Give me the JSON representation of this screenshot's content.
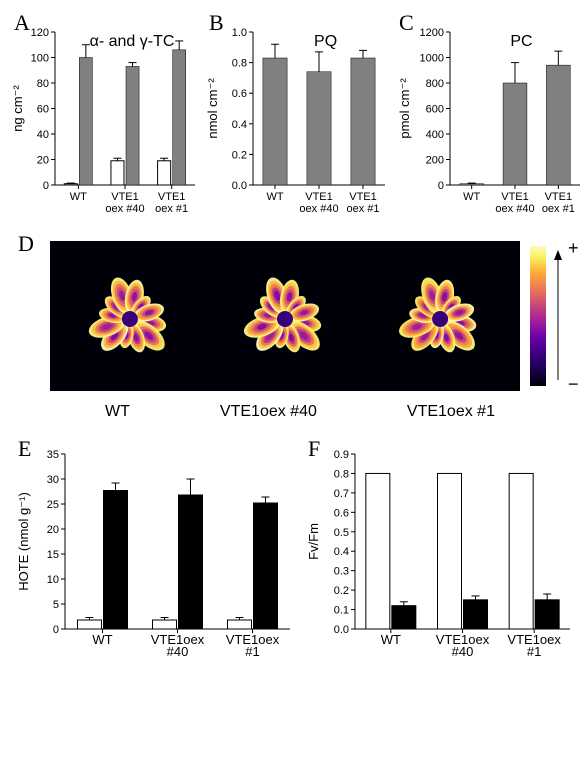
{
  "panelA": {
    "label": "A",
    "title": "α- and γ-TC",
    "ylabel": "ng cm⁻²",
    "ylim": [
      0,
      120
    ],
    "ytick_step": 20,
    "categories": [
      "WT",
      "VTE1\noex #40",
      "VTE1\noex #1"
    ],
    "series": [
      {
        "type": "open",
        "values": [
          1,
          19,
          19
        ],
        "errors": [
          0.5,
          2,
          2
        ]
      },
      {
        "type": "gray",
        "values": [
          100,
          93,
          106
        ],
        "errors": [
          10,
          3,
          7
        ]
      }
    ]
  },
  "panelB": {
    "label": "B",
    "title": "PQ",
    "ylabel": "nmol cm⁻²",
    "ylim": [
      0,
      1.0
    ],
    "ytick_step": 0.2,
    "categories": [
      "WT",
      "VTE1\noex #40",
      "VTE1\noex #1"
    ],
    "series": [
      {
        "type": "gray",
        "values": [
          0.83,
          0.74,
          0.83
        ],
        "errors": [
          0.09,
          0.13,
          0.05
        ]
      }
    ]
  },
  "panelC": {
    "label": "C",
    "title": "PC",
    "ylabel": "pmol cm⁻²",
    "ylim": [
      0,
      1200
    ],
    "ytick_step": 200,
    "categories": [
      "WT",
      "VTE1\noex #40",
      "VTE1\noex #1"
    ],
    "series": [
      {
        "type": "gray",
        "values": [
          10,
          800,
          940
        ],
        "errors": [
          5,
          160,
          110
        ]
      }
    ]
  },
  "panelD": {
    "label": "D",
    "categories": [
      "WT",
      "VTE1oex #40",
      "VTE1oex #1"
    ],
    "colorbar": {
      "low": "−",
      "high": "+"
    }
  },
  "panelE": {
    "label": "E",
    "ylabel": "HOTE (nmol g⁻¹)",
    "ylim": [
      0,
      35
    ],
    "ytick_step": 5,
    "categories": [
      "WT",
      "VTE1oex\n#40",
      "VTE1oex\n#1"
    ],
    "series": [
      {
        "type": "open",
        "values": [
          1.8,
          1.8,
          1.8
        ],
        "errors": [
          0.5,
          0.5,
          0.5
        ]
      },
      {
        "type": "black",
        "values": [
          27.7,
          26.8,
          25.2
        ],
        "errors": [
          1.5,
          3.2,
          1.2
        ]
      }
    ]
  },
  "panelF": {
    "label": "F",
    "ylabel": "Fv/Fm",
    "ylim": [
      0,
      0.9
    ],
    "ytick_step": 0.1,
    "categories": [
      "WT",
      "VTE1oex\n#40",
      "VTE1oex\n#1"
    ],
    "series": [
      {
        "type": "open",
        "values": [
          0.8,
          0.8,
          0.8
        ],
        "errors": [
          0,
          0,
          0
        ]
      },
      {
        "type": "black",
        "values": [
          0.12,
          0.15,
          0.15
        ],
        "errors": [
          0.02,
          0.02,
          0.03
        ]
      }
    ]
  }
}
